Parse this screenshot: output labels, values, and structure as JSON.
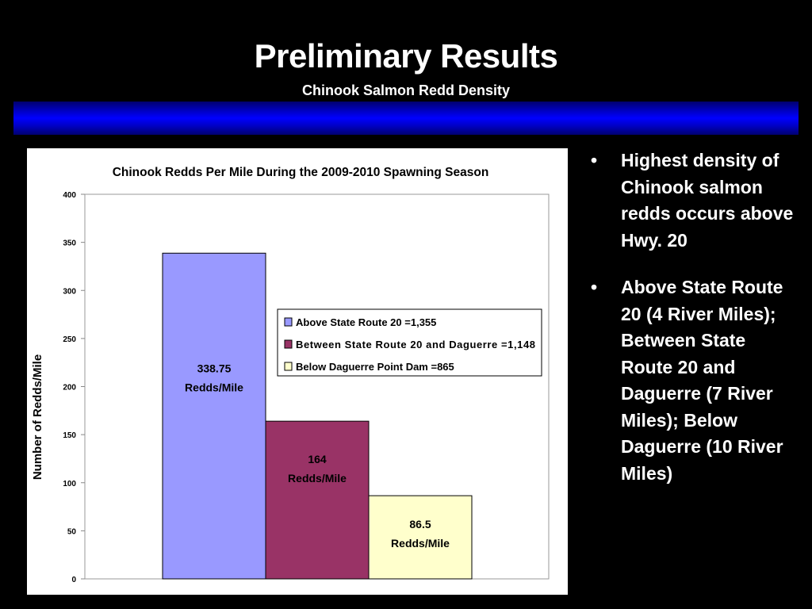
{
  "slide": {
    "title": "Preliminary Results",
    "subtitle": "Chinook Salmon Redd Density",
    "band_color": "#0000ff",
    "bullets": [
      "Highest density of Chinook salmon redds occurs above Hwy. 20",
      "Above State Route 20 (4 River Miles);  Between State Route 20 and Daguerre (7 River Miles); Below Daguerre (10 River Miles)"
    ]
  },
  "chart_data": {
    "type": "bar",
    "title": "Chinook Redds Per Mile During the 2009-2010 Spawning Season",
    "xlabel": "",
    "ylabel": "Number of Redds/Mile",
    "ylim": [
      0,
      400
    ],
    "yticks": [
      0,
      50,
      100,
      150,
      200,
      250,
      300,
      350,
      400
    ],
    "grid": false,
    "legend_position": "center-right",
    "series": [
      {
        "name": "Above State Route 20 =1,355",
        "value": 338.75,
        "label": [
          "338.75",
          "Redds/Mile"
        ],
        "color": "#9999ff"
      },
      {
        "name": "Between State Route 20 and Daguerre =1,148",
        "value": 164,
        "label": [
          "164",
          "Redds/Mile"
        ],
        "color": "#993366"
      },
      {
        "name": "Below Daguerre Point Dam =865",
        "value": 86.5,
        "label": [
          "86.5",
          "Redds/Mile"
        ],
        "color": "#ffffcc"
      }
    ]
  }
}
